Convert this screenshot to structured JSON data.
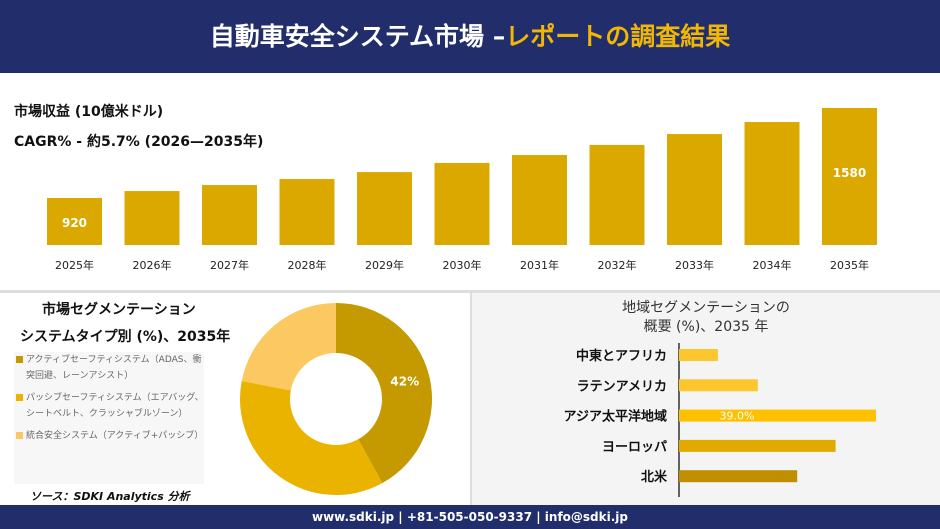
{
  "header": {
    "title_main": "自動車安全システム市場 –",
    "title_accent": "レポートの調査結果"
  },
  "colors": {
    "navy": "#212e6b",
    "accent": "#f2b705",
    "bar": "#dba800",
    "donut": [
      "#c49a00",
      "#eab300",
      "#fcc862"
    ],
    "region": [
      "#fcc62e",
      "#fcc62e",
      "#ffc000",
      "#e2aa00",
      "#bf8f00"
    ]
  },
  "top": {
    "label1": "市場収益 (10億米ドル)",
    "label2": "CAGR% - 約5.7% (2026—2035年)"
  },
  "bottom_left": {
    "title1": "市場セグメンテーション",
    "title2": "システムタイプ別 (%)、2035年",
    "source": "ソース：SDKI Analytics 分析"
  },
  "bottom_right": {
    "title1": "地域セグメンテーションの",
    "title2": "概要 (%)、2035 年"
  },
  "footer": {
    "text": "www.sdki.jp | +81-505-050-9337 | info@sdki.jp"
  },
  "chart_data": [
    {
      "type": "bar",
      "categories": [
        "2025年",
        "2026年",
        "2027年",
        "2028年",
        "2029年",
        "2030年",
        "2031年",
        "2032年",
        "2033年",
        "2034年",
        "2035年"
      ],
      "values": [
        920,
        971,
        1015,
        1059,
        1110,
        1177,
        1235,
        1309,
        1389,
        1477,
        1580
      ],
      "data_labels": {
        "0": "920",
        "10": "1580"
      }
    },
    {
      "type": "pie",
      "donut": true,
      "categories": [
        "アクティブセーフティシステム（ADAS、衝突回避、レーンアシスト）",
        "パッシブセーフティシステム（エアバッグ、シートベルト、クラッシャブルゾーン）",
        "統合安全システム（アクティブ+パッシブ）"
      ],
      "values": [
        42,
        36,
        22
      ],
      "data_labels": {
        "0": "42%"
      }
    },
    {
      "type": "bar",
      "orientation": "horizontal",
      "categories": [
        "中東とアフリカ",
        "ラテンアメリカ",
        "アジア太平洋地域",
        "ヨーロッパ",
        "北米"
      ],
      "values": [
        7.7,
        15.6,
        39.0,
        31.0,
        23.4
      ],
      "data_labels": {
        "2": "39.0%"
      }
    }
  ]
}
